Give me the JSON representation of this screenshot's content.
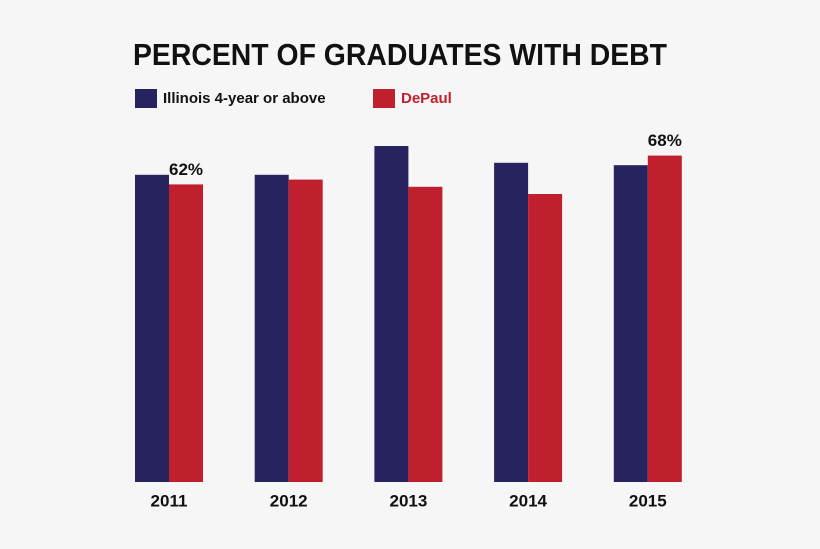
{
  "chart_data": {
    "type": "bar",
    "title": "PERCENT OF GRADUATES WITH DEBT",
    "categories": [
      "2011",
      "2012",
      "2013",
      "2014",
      "2015"
    ],
    "series": [
      {
        "name": "Illinois 4-year or above",
        "color": "#27235f",
        "values": [
          64,
          64,
          70,
          66.5,
          66
        ]
      },
      {
        "name": "DePaul",
        "color": "#c0202e",
        "values": [
          62,
          63,
          61.5,
          60,
          68
        ],
        "value_labels": [
          "62%",
          null,
          null,
          null,
          "68%"
        ]
      }
    ],
    "ylim": [
      0,
      100
    ]
  }
}
